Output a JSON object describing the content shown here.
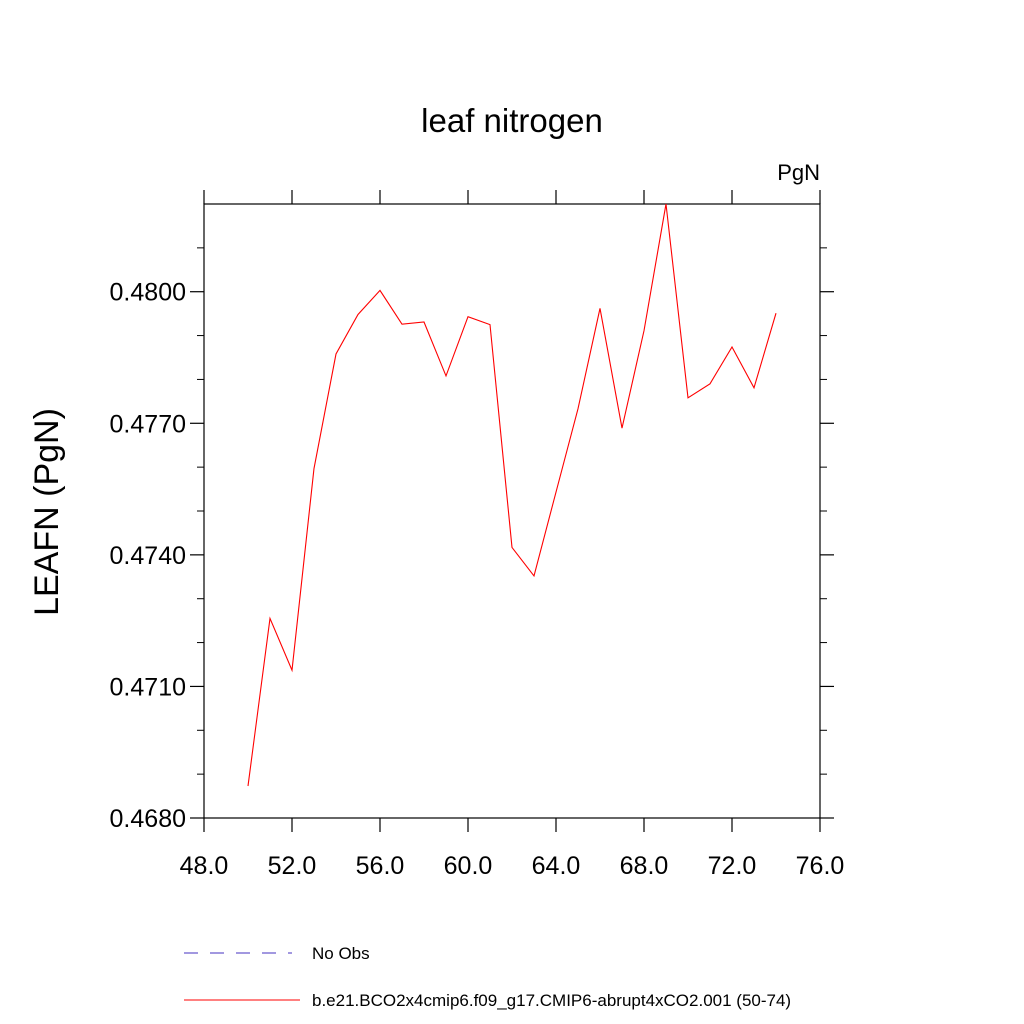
{
  "chart_data": {
    "type": "line",
    "title": "leaf nitrogen",
    "units_label": "PgN",
    "xlabel": "",
    "ylabel": "LEAFN  (PgN)",
    "xlim": [
      48,
      76
    ],
    "ylim": [
      0.468,
      0.482
    ],
    "x_ticks": [
      48,
      52,
      56,
      60,
      64,
      68,
      72,
      76
    ],
    "x_tick_labels": [
      "48.0",
      "52.0",
      "56.0",
      "60.0",
      "64.0",
      "68.0",
      "72.0",
      "76.0"
    ],
    "x_minor_ticks": [],
    "y_ticks": [
      0.468,
      0.471,
      0.474,
      0.477,
      0.48
    ],
    "y_tick_labels": [
      "0.4680",
      "0.4710",
      "0.4740",
      "0.4770",
      "0.4800"
    ],
    "y_minor_ticks": [
      0.469,
      0.47,
      0.472,
      0.473,
      0.475,
      0.476,
      0.478,
      0.479,
      0.481
    ],
    "grid": false,
    "legend_position": "bottom",
    "series": [
      {
        "name": "b.e21.BCO2x4cmip6.f09_g17.CMIP6-abrupt4xCO2.001 (50-74)",
        "color": "#ff0000",
        "dash": "solid",
        "x": [
          50,
          51,
          52,
          53,
          54,
          55,
          56,
          57,
          58,
          59,
          60,
          61,
          62,
          63,
          64,
          65,
          66,
          67,
          68,
          69,
          70,
          71,
          72,
          73,
          74
        ],
        "y": [
          0.46873,
          0.47255,
          0.47137,
          0.47597,
          0.47858,
          0.47948,
          0.48003,
          0.47926,
          0.47931,
          0.47808,
          0.47943,
          0.47925,
          0.47417,
          0.47352,
          0.47543,
          0.47733,
          0.47962,
          0.47689,
          0.47911,
          0.482,
          0.47758,
          0.4779,
          0.47874,
          0.47781,
          0.47951
        ]
      },
      {
        "name": "No Obs",
        "color": "#6a5acd",
        "dash": "dashed",
        "x": [],
        "y": []
      }
    ]
  }
}
